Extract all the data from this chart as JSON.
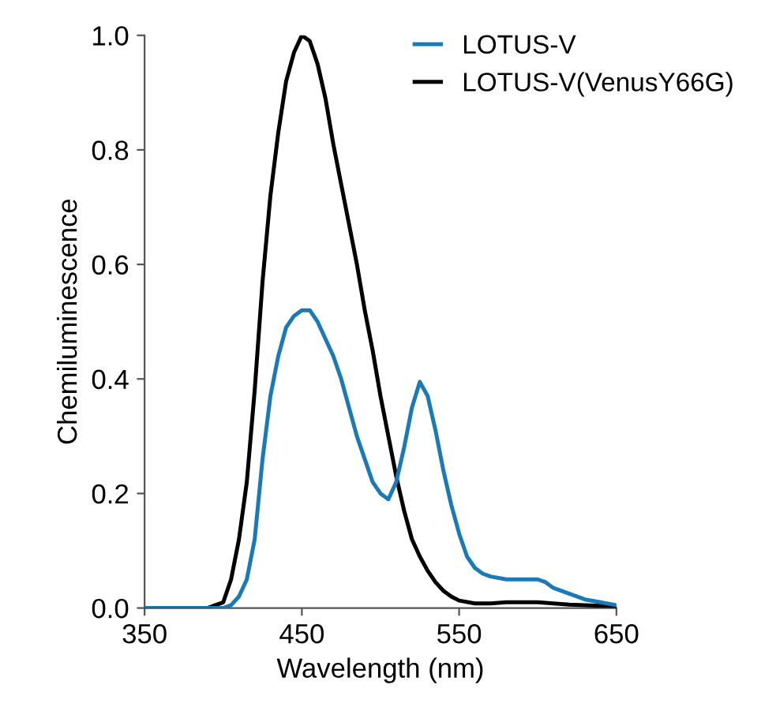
{
  "chart_data": {
    "type": "line",
    "xlabel": "Wavelength (nm)",
    "ylabel": "Chemiluminescence",
    "xlim": [
      350,
      650
    ],
    "xticks": [
      350,
      450,
      550,
      650
    ],
    "ylim": [
      0,
      1.0
    ],
    "yticks": [
      {
        "value": 0,
        "label": "0.0"
      },
      {
        "value": 0.2,
        "label": "0.2"
      },
      {
        "value": 0.4,
        "label": "0.4"
      },
      {
        "value": 0.6,
        "label": "0.6"
      },
      {
        "value": 0.8,
        "label": "0.8"
      },
      {
        "value": 1.0,
        "label": "1.0"
      }
    ],
    "grid": false,
    "legend": "top right",
    "line_style": "solid",
    "marker": "none",
    "series": [
      {
        "name": "LOTUS-V",
        "color": "#1a7ab8",
        "x": [
          350,
          360,
          370,
          380,
          390,
          400,
          405,
          410,
          415,
          420,
          425,
          430,
          435,
          440,
          445,
          450,
          455,
          460,
          465,
          470,
          475,
          480,
          485,
          490,
          495,
          500,
          505,
          510,
          515,
          520,
          525,
          530,
          535,
          540,
          545,
          550,
          555,
          560,
          565,
          570,
          580,
          590,
          600,
          605,
          610,
          620,
          630,
          640,
          650
        ],
        "values": [
          0,
          0,
          0,
          0,
          0,
          0,
          0.005,
          0.02,
          0.05,
          0.12,
          0.26,
          0.37,
          0.44,
          0.49,
          0.51,
          0.52,
          0.52,
          0.5,
          0.47,
          0.44,
          0.4,
          0.35,
          0.3,
          0.26,
          0.22,
          0.2,
          0.19,
          0.22,
          0.28,
          0.35,
          0.395,
          0.37,
          0.31,
          0.24,
          0.18,
          0.13,
          0.09,
          0.07,
          0.06,
          0.055,
          0.05,
          0.05,
          0.05,
          0.045,
          0.035,
          0.025,
          0.015,
          0.01,
          0.005
        ]
      },
      {
        "name": "LOTUS-V(VenusY66G)",
        "color": "#000000",
        "x": [
          350,
          360,
          370,
          380,
          390,
          400,
          405,
          410,
          415,
          420,
          425,
          430,
          435,
          440,
          445,
          450,
          455,
          460,
          465,
          470,
          475,
          480,
          485,
          490,
          495,
          500,
          505,
          510,
          515,
          520,
          525,
          530,
          535,
          540,
          545,
          550,
          560,
          570,
          580,
          590,
          600,
          610,
          620,
          630,
          640,
          650
        ],
        "values": [
          0,
          0,
          0,
          0,
          0,
          0.01,
          0.05,
          0.12,
          0.22,
          0.38,
          0.57,
          0.72,
          0.83,
          0.92,
          0.97,
          1.0,
          0.99,
          0.95,
          0.89,
          0.81,
          0.74,
          0.67,
          0.6,
          0.52,
          0.45,
          0.37,
          0.3,
          0.23,
          0.17,
          0.12,
          0.09,
          0.065,
          0.045,
          0.03,
          0.02,
          0.013,
          0.008,
          0.008,
          0.01,
          0.01,
          0.01,
          0.008,
          0.006,
          0.005,
          0.004,
          0.003
        ]
      }
    ]
  }
}
